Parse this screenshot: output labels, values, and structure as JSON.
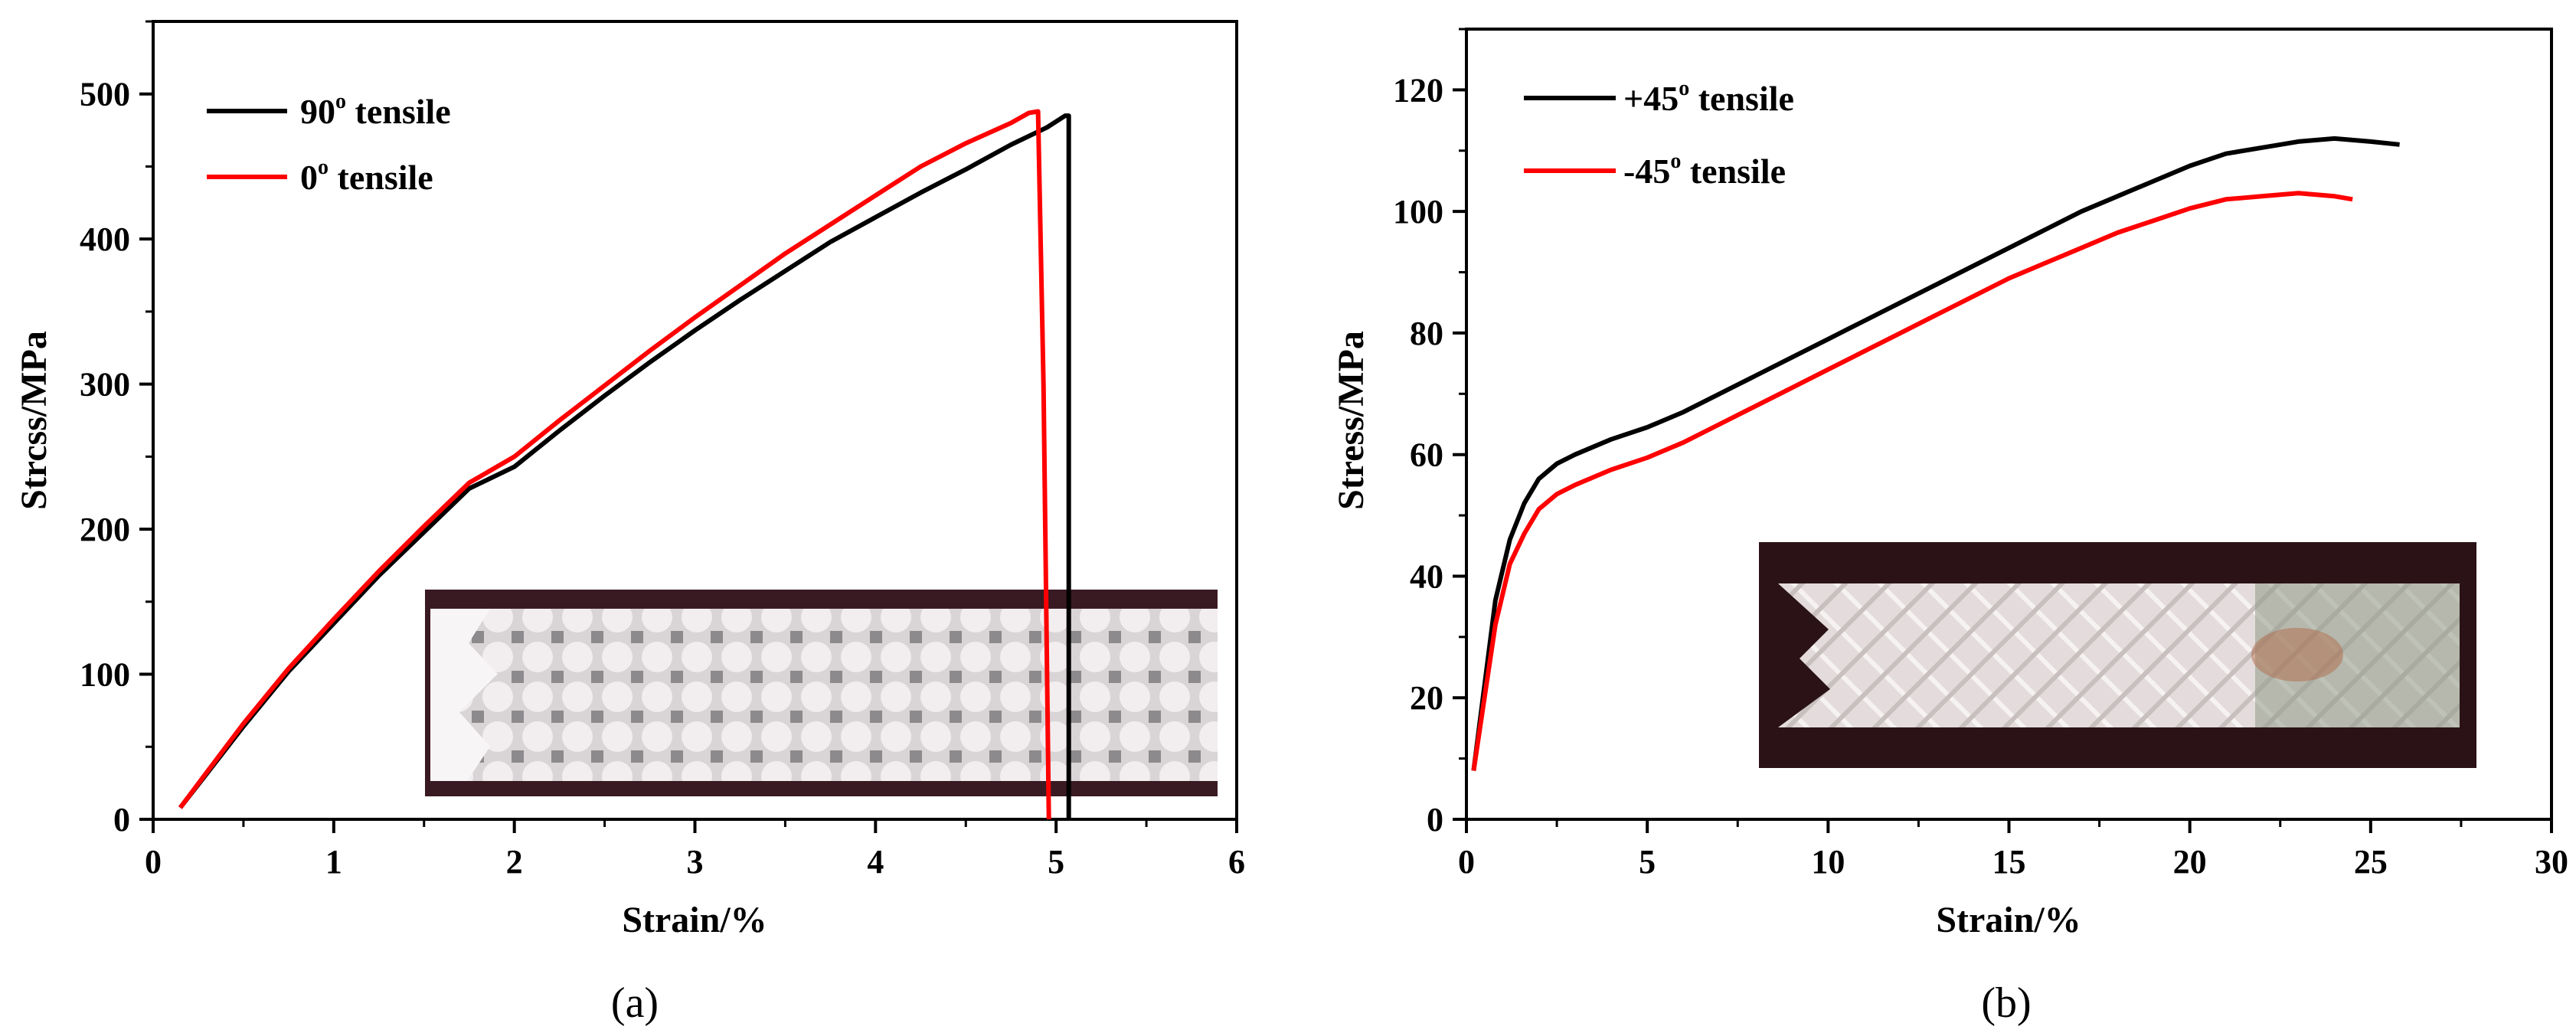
{
  "chart_data": [
    {
      "type": "line",
      "panel_label": "(a)",
      "xlabel": "Strain/%",
      "ylabel": "Strcss/MPa",
      "xlim": [
        0,
        6
      ],
      "ylim": [
        0,
        550
      ],
      "xticks": [
        0,
        1,
        2,
        3,
        4,
        5,
        6
      ],
      "yticks": [
        0,
        100,
        200,
        300,
        400,
        500
      ],
      "legend_position": "top-left",
      "inset": "photo of 90-degree tensile specimen (woven fabric strip)",
      "series": [
        {
          "name": "90",
          "legend_suffix": " tensile",
          "color": "#000000",
          "x": [
            0.15,
            0.3,
            0.5,
            0.75,
            1.0,
            1.25,
            1.5,
            1.75,
            2.0,
            2.25,
            2.5,
            2.75,
            3.0,
            3.25,
            3.5,
            3.75,
            4.0,
            4.25,
            4.5,
            4.75,
            4.95,
            5.05,
            5.07,
            5.07
          ],
          "y": [
            8,
            32,
            64,
            102,
            135,
            168,
            198,
            228,
            243,
            268,
            292,
            315,
            337,
            358,
            378,
            398,
            415,
            432,
            448,
            465,
            477,
            485,
            485,
            0
          ]
        },
        {
          "name": "0",
          "legend_suffix": " tensile",
          "color": "#ff0000",
          "x": [
            0.15,
            0.3,
            0.5,
            0.75,
            1.0,
            1.25,
            1.5,
            1.75,
            2.0,
            2.25,
            2.5,
            2.75,
            3.0,
            3.25,
            3.5,
            3.75,
            4.0,
            4.25,
            4.5,
            4.75,
            4.85,
            4.9,
            4.93,
            4.96
          ],
          "y": [
            8,
            33,
            66,
            104,
            138,
            171,
            202,
            232,
            250,
            275,
            299,
            323,
            346,
            368,
            390,
            410,
            430,
            450,
            466,
            480,
            487,
            488,
            300,
            0
          ]
        }
      ]
    },
    {
      "type": "line",
      "panel_label": "(b)",
      "xlabel": "Strain/%",
      "ylabel": "Stress/MPa",
      "xlim": [
        0,
        30
      ],
      "ylim": [
        0,
        130
      ],
      "xticks": [
        0,
        5,
        10,
        15,
        20,
        25,
        30
      ],
      "yticks": [
        0,
        20,
        40,
        60,
        80,
        100,
        120
      ],
      "legend_position": "top-left",
      "inset": "photo of 45-degree tensile specimen (woven fabric strip)",
      "series": [
        {
          "name": "+45",
          "legend_suffix": " tensile",
          "color": "#000000",
          "x": [
            0.2,
            0.5,
            0.8,
            1.2,
            1.6,
            2.0,
            2.5,
            3.0,
            4.0,
            5.0,
            6.0,
            7.0,
            8.0,
            9.0,
            10.0,
            11.0,
            12.0,
            13.0,
            14.0,
            15.0,
            16.0,
            17.0,
            18.0,
            19.0,
            20.0,
            21.0,
            22.0,
            23.0,
            24.0,
            25.0,
            25.8
          ],
          "y": [
            8,
            22,
            36,
            46,
            52,
            56,
            58.5,
            60,
            62.5,
            64.5,
            67,
            70,
            73,
            76,
            79,
            82,
            85,
            88,
            91,
            94,
            97,
            100,
            102.5,
            105,
            107.5,
            109.5,
            110.5,
            111.5,
            112,
            111.5,
            111
          ]
        },
        {
          "name": "-45",
          "legend_suffix": " tensile",
          "color": "#ff0000",
          "x": [
            0.2,
            0.5,
            0.8,
            1.2,
            1.6,
            2.0,
            2.5,
            3.0,
            4.0,
            5.0,
            6.0,
            7.0,
            8.0,
            9.0,
            10.0,
            11.0,
            12.0,
            13.0,
            14.0,
            15.0,
            16.0,
            17.0,
            18.0,
            19.0,
            20.0,
            21.0,
            22.0,
            23.0,
            24.0,
            24.5
          ],
          "y": [
            8,
            20,
            32,
            42,
            47,
            51,
            53.5,
            55,
            57.5,
            59.5,
            62,
            65,
            68,
            71,
            74,
            77,
            80,
            83,
            86,
            89,
            91.5,
            94,
            96.5,
            98.5,
            100.5,
            102,
            102.5,
            103,
            102.5,
            102
          ]
        }
      ]
    }
  ]
}
